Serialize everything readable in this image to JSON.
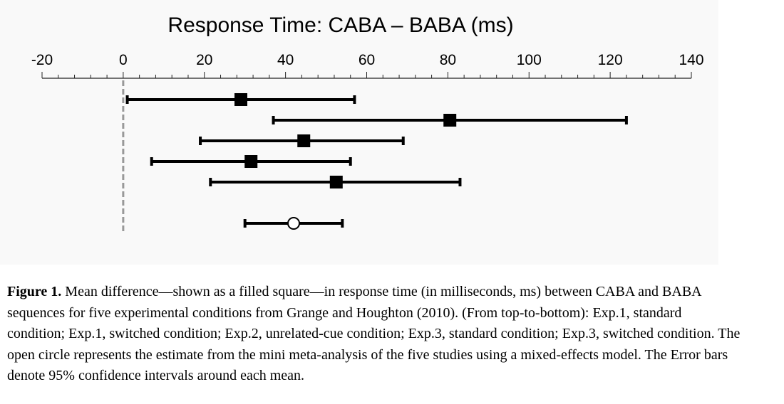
{
  "chart_data": {
    "type": "forest",
    "title": "Response Time: CABA – BABA (ms)",
    "xlim": [
      -20,
      140
    ],
    "major_ticks": [
      -20,
      0,
      20,
      40,
      60,
      80,
      100,
      120,
      140
    ],
    "tick_labels": [
      "-20",
      "0",
      "20",
      "40",
      "60",
      "80",
      "100",
      "120",
      "140"
    ],
    "axis_position": "top",
    "reference_line": 0,
    "rows": [
      {
        "marker": "filled-square",
        "mean": 29,
        "ci": [
          1,
          57
        ]
      },
      {
        "marker": "filled-square",
        "mean": 80.5,
        "ci": [
          37,
          124
        ]
      },
      {
        "marker": "filled-square",
        "mean": 44.5,
        "ci": [
          19,
          69
        ]
      },
      {
        "marker": "filled-square",
        "mean": 31.5,
        "ci": [
          7,
          56
        ]
      },
      {
        "marker": "filled-square",
        "mean": 52.5,
        "ci": [
          21.5,
          83
        ]
      },
      {
        "marker": "open-circle",
        "mean": 42,
        "ci": [
          30,
          54
        ]
      }
    ]
  },
  "caption": {
    "label": "Figure 1.",
    "text": " Mean difference—shown as a filled square—in response time (in milliseconds, ms) between CABA and BABA sequences for five experimental conditions from Grange and Houghton (2010). (From top-to-bottom): Exp.1, standard condition; Exp.1, switched condition; Exp.2, unrelated-cue condition; Exp.3, standard condition; Exp.3, switched condition. The open circle represents the estimate from the mini meta-analysis of the five studies using a mixed-effects model. The Error bars denote 95% confidence intervals around each mean."
  }
}
